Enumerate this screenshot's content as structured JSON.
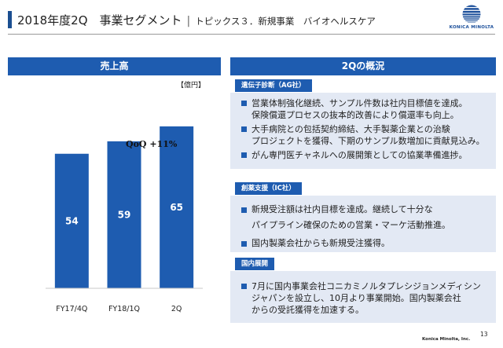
{
  "header": {
    "title": "2018年度2Q　事業セグメント",
    "separator": "|",
    "subtitle": "トピックス３．新規事業　バイオヘルスケア"
  },
  "logo": {
    "text": "KONICA MINOLTA",
    "color": "#1a4e9a"
  },
  "left_panel": {
    "title": "売上高",
    "unit": "【億円】",
    "annotation": "QoQ +11%"
  },
  "chart_data": {
    "type": "bar",
    "categories": [
      "FY17/4Q",
      "FY18/1Q",
      "2Q"
    ],
    "values": [
      54,
      59,
      65
    ],
    "value_labels": [
      "54",
      "59",
      "65"
    ],
    "ylim": [
      0,
      70
    ],
    "bar_color": "#1e5cb0",
    "label_color": "#ffffff",
    "grid": false
  },
  "right_panel": {
    "title": "2Qの概況",
    "sections": [
      {
        "tag": "遺伝子診断（AG社）",
        "bullets": [
          "営業体制強化継続、サンプル件数は社内目標値を達成。\n保険償還プロセスの抜本的改善により償還率も向上。",
          "大手病院との包括契約締結、大手製薬企業との治験\nプロジェクトを獲得、下期のサンプル数増加に貢献見込み。",
          "がん専門医チャネルへの展開策としての協業準備進捗。"
        ]
      },
      {
        "tag": "創薬支援（IC社）",
        "bullets": [
          "新規受注額は社内目標を達成。継続して十分な\nパイプライン確保のための営業・マーケ活動推進。",
          "国内製薬会社からも新規受注獲得。"
        ]
      },
      {
        "tag": "国内展開",
        "bullets": [
          "7月に国内事業会社コニカミノルタプレシジョンメディシン\nジャパンを設立し、10月より事業開始。国内製薬会社\nからの受託獲得を加速する。"
        ]
      }
    ]
  },
  "footer": {
    "brand": "Konica Minolta, Inc.",
    "page": "13"
  },
  "colors": {
    "accent": "#1e5cb0",
    "section_bg": "#e3e9f4",
    "header_bar": "#1b4f91"
  }
}
